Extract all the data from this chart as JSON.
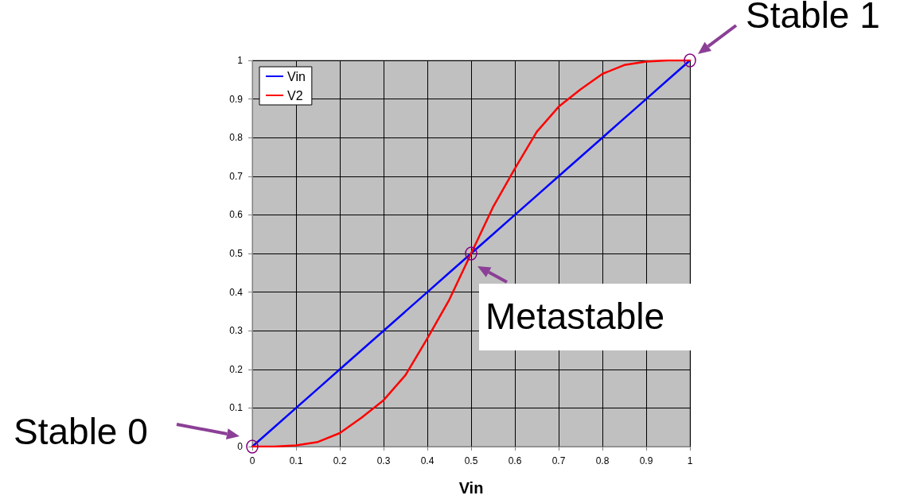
{
  "chart_data": {
    "type": "line",
    "xlabel": "Vin",
    "x": [
      0,
      0.05,
      0.1,
      0.15,
      0.2,
      0.25,
      0.3,
      0.35,
      0.4,
      0.45,
      0.5,
      0.55,
      0.6,
      0.65,
      0.7,
      0.75,
      0.8,
      0.85,
      0.9,
      0.95,
      1
    ],
    "series": [
      {
        "name": "Vin",
        "color": "#0000ff",
        "values": [
          0,
          0.05,
          0.1,
          0.15,
          0.2,
          0.25,
          0.3,
          0.35,
          0.4,
          0.45,
          0.5,
          0.55,
          0.6,
          0.65,
          0.7,
          0.75,
          0.8,
          0.85,
          0.9,
          0.95,
          1
        ]
      },
      {
        "name": "V2",
        "color": "#ff0000",
        "values": [
          0,
          0,
          0.003,
          0.012,
          0.035,
          0.075,
          0.12,
          0.185,
          0.28,
          0.38,
          0.5,
          0.62,
          0.72,
          0.815,
          0.88,
          0.925,
          0.965,
          0.988,
          0.997,
          1,
          1
        ]
      }
    ],
    "xlim": [
      0,
      1
    ],
    "xticks": [
      0,
      0.1,
      0.2,
      0.3,
      0.4,
      0.5,
      0.6,
      0.7,
      0.8,
      0.9,
      1
    ],
    "ylim": [
      0,
      1
    ],
    "yticks": [
      0,
      0.1,
      0.2,
      0.3,
      0.4,
      0.5,
      0.6,
      0.7,
      0.8,
      0.9,
      1
    ],
    "grid": true,
    "legend": "top left",
    "marker": "none",
    "line_style": "solid",
    "annotations": [
      {
        "text": "Stable 0",
        "x": 0,
        "y": 0
      },
      {
        "text": "Metastable",
        "x": 0.5,
        "y": 0.5
      },
      {
        "text": "Stable 1",
        "x": 1,
        "y": 1
      }
    ]
  }
}
